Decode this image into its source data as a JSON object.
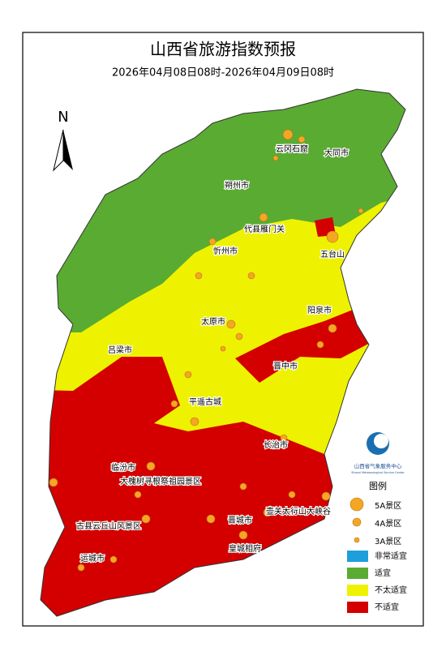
{
  "header": {
    "title": "山西省旅游指数预报",
    "subtitle": "2026年04月08日08时-2026年04月09日08时"
  },
  "north": "N",
  "labels": [
    "云冈石窟",
    "大同市",
    "朔州市",
    "代县雁门关",
    "忻州市",
    "五台山",
    "阳泉市",
    "太原市",
    "吕梁市",
    "晋中市",
    "平遥古城",
    "长治市",
    "临汾市",
    "大槐树寻根祭祖园景区",
    "壶关太行山大峡谷",
    "晋城市",
    "皇城相府",
    "古县云丘山风景区",
    "运城市"
  ],
  "logo": {
    "name": "山西省气象服务中心",
    "english": "Shanxi Meteorological Service Center"
  },
  "legend": {
    "title": "图例",
    "spots": [
      "5A景区",
      "4A景区",
      "3A景区"
    ],
    "zones": [
      {
        "label": "非常适宜",
        "color": "#1e9fdc"
      },
      {
        "label": "适宜",
        "color": "#5aab32"
      },
      {
        "label": "不太适宜",
        "color": "#eef200"
      },
      {
        "label": "不适宜",
        "color": "#d40000"
      }
    ]
  }
}
